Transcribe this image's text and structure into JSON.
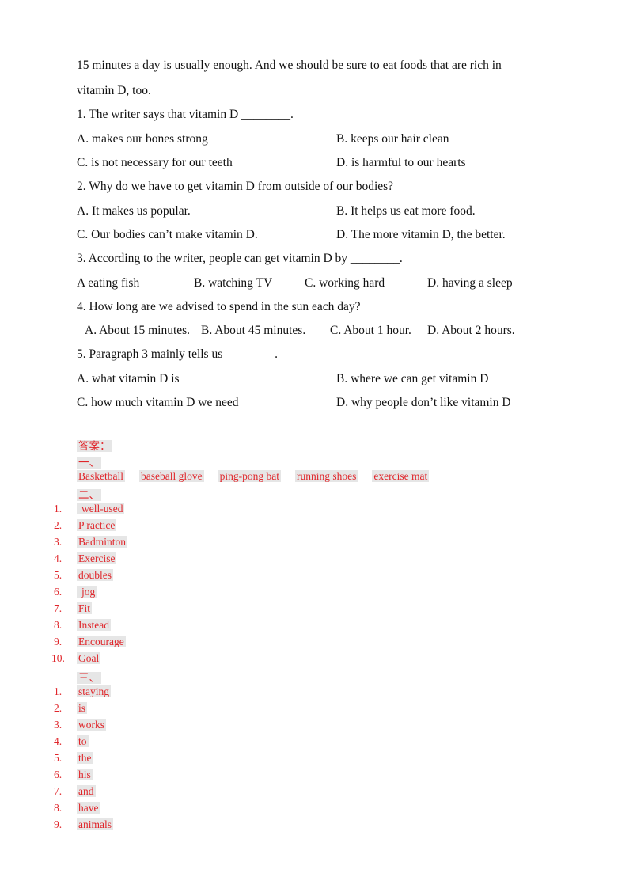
{
  "passage": {
    "line1": "15 minutes a day is usually enough. And we should be sure to eat foods that are rich in",
    "line2": "vitamin D, too."
  },
  "questions": [
    {
      "stem": "1. The writer says that vitamin D ________.",
      "options": [
        "A. makes our bones strong",
        "B. keeps our hair clean",
        "C. is not necessary for our teeth",
        "D. is harmful to our hearts"
      ]
    },
    {
      "stem": "2. Why do we have to get vitamin D from outside of our bodies?",
      "options": [
        "A. It makes us popular.",
        "B. It helps us eat more food.",
        "C. Our bodies can’t make vitamin D.",
        "D. The more vitamin D, the better."
      ]
    },
    {
      "stem": "3. According to the writer, people can get vitamin D by ________.",
      "options": [
        "A eating fish",
        "B. watching TV",
        "C. working hard",
        "D. having a sleep"
      ]
    },
    {
      "stem": "4. How long are we advised to spend in the sun each day?",
      "options": [
        "A. About 15 minutes.",
        "B. About 45 minutes.",
        "C. About 1 hour.",
        "D. About 2 hours."
      ]
    },
    {
      "stem": "5. Paragraph 3 mainly tells us ________.",
      "options": [
        "A. what vitamin D is",
        "B. where we can get vitamin D",
        "C. how much vitamin D we need",
        "D. why people don’t like vitamin D"
      ]
    }
  ],
  "answers": {
    "heading": "答案：",
    "section1": {
      "title": "一、",
      "items": [
        "Basketball",
        "baseball glove",
        "ping-pong bat",
        "running shoes",
        "exercise mat"
      ]
    },
    "section2": {
      "title": "二、",
      "items": [
        "well-used",
        "P ractice",
        "Badminton",
        "Exercise",
        "doubles",
        "jog",
        "Fit",
        "Instead",
        "Encourage",
        "Goal"
      ]
    },
    "section3": {
      "title": "三、",
      "items": [
        "staying",
        "is",
        "works",
        "to",
        "the",
        "his",
        "and",
        "have",
        "animals"
      ]
    }
  },
  "numbers": [
    "1.",
    "2.",
    "3.",
    "4.",
    "5.",
    "6.",
    "7.",
    "8.",
    "9.",
    "10."
  ]
}
